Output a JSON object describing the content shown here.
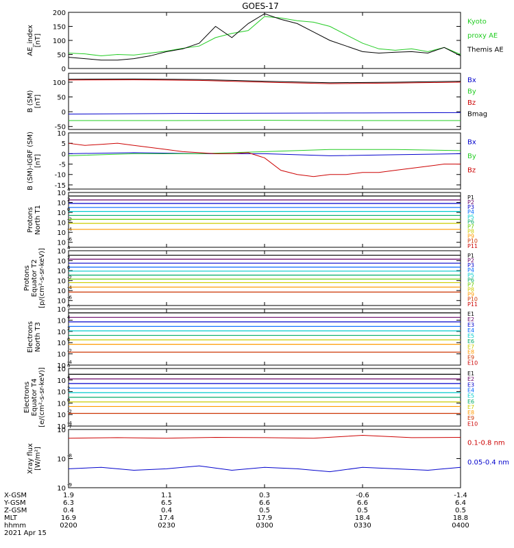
{
  "title": "GOES-17",
  "colors": {
    "black": "#000000",
    "red": "#cc0000",
    "green": "#22cc22",
    "blue": "#0000cc"
  },
  "panels": [
    {
      "id": "ae",
      "ylabel": [
        "AE_index",
        "[nT]"
      ],
      "scale": "linear",
      "ylim": [
        0,
        200
      ],
      "ticks": [
        0,
        50,
        100,
        150,
        200
      ],
      "ticklabels": [
        "0",
        "50",
        "100",
        "150",
        "200"
      ],
      "legend": [
        {
          "text": "Kyoto",
          "color": "#22cc22"
        },
        {
          "text": "proxy AE",
          "color": "#22cc22"
        },
        {
          "text": "Themis AE",
          "color": "#000000"
        }
      ]
    },
    {
      "id": "bsm",
      "ylabel": [
        "B (SM)",
        "[nT]"
      ],
      "scale": "linear",
      "ylim": [
        -60,
        130
      ],
      "ticks": [
        -50,
        0,
        50,
        100
      ],
      "ticklabels": [
        "-50",
        "0",
        "50",
        "100"
      ],
      "legend": [
        {
          "text": "Bx",
          "color": "#0000cc"
        },
        {
          "text": "By",
          "color": "#22cc22"
        },
        {
          "text": "Bz",
          "color": "#cc0000"
        },
        {
          "text": "Bmag",
          "color": "#000000"
        }
      ]
    },
    {
      "id": "bigrf",
      "ylabel": [
        "B (SM)-IGRF (SM)",
        "[nT]"
      ],
      "scale": "linear",
      "ylim": [
        -17,
        10
      ],
      "ticks": [
        -15,
        -10,
        -5,
        0,
        5,
        10
      ],
      "ticklabels": [
        "-15",
        "-10",
        "-5",
        "0",
        "5",
        "10"
      ],
      "legend": [
        {
          "text": "Bx",
          "color": "#0000cc"
        },
        {
          "text": "By",
          "color": "#22cc22"
        },
        {
          "text": "Bz",
          "color": "#cc0000"
        }
      ]
    },
    {
      "id": "prot_t1",
      "ylabel": [
        "Protons",
        "North T1"
      ],
      "scale": "log",
      "ylim": [
        -7,
        4
      ],
      "ticks": [
        -6,
        -4,
        -2,
        0,
        2,
        4
      ],
      "ticklabels": [
        "10",
        "10",
        "10",
        "10",
        "10",
        "10"
      ],
      "tickexps": [
        "-6",
        "-4",
        "-2",
        "0",
        "2",
        "4"
      ],
      "legend": [
        {
          "text": "P1",
          "color": "#000000"
        },
        {
          "text": "P2",
          "color": "#660066"
        },
        {
          "text": "P3",
          "color": "#0000cc"
        },
        {
          "text": "P4",
          "color": "#0066ff"
        },
        {
          "text": "P5",
          "color": "#00cccc"
        },
        {
          "text": "P6",
          "color": "#00aa66"
        },
        {
          "text": "P7",
          "color": "#66cc00"
        },
        {
          "text": "P8",
          "color": "#cccc00"
        },
        {
          "text": "P9",
          "color": "#ff9900"
        },
        {
          "text": "P10",
          "color": "#cc3300"
        },
        {
          "text": "P11",
          "color": "#cc0000"
        }
      ]
    },
    {
      "id": "prot_t2",
      "ylabel": [
        "Protons",
        "Equator T2",
        "[p/(cm²-s-sr-keV)]"
      ],
      "scale": "log",
      "ylim": [
        -7,
        4
      ],
      "ticks": [
        -6,
        -4,
        -2,
        0,
        2,
        4
      ],
      "ticklabels": [
        "10",
        "10",
        "10",
        "10",
        "10",
        "10"
      ],
      "tickexps": [
        "-6",
        "-4",
        "-2",
        "0",
        "2",
        "4"
      ],
      "legend": [
        {
          "text": "P1",
          "color": "#000000"
        },
        {
          "text": "P2",
          "color": "#660066"
        },
        {
          "text": "P3",
          "color": "#0000cc"
        },
        {
          "text": "P4",
          "color": "#0066ff"
        },
        {
          "text": "P5",
          "color": "#00cccc"
        },
        {
          "text": "P6",
          "color": "#00aa66"
        },
        {
          "text": "P7",
          "color": "#66cc00"
        },
        {
          "text": "P8",
          "color": "#cccc00"
        },
        {
          "text": "P9",
          "color": "#ff9900"
        },
        {
          "text": "P10",
          "color": "#cc3300"
        },
        {
          "text": "P11",
          "color": "#cc0000"
        }
      ]
    },
    {
      "id": "elec_t3",
      "ylabel": [
        "Electrons",
        "North T3"
      ],
      "scale": "log",
      "ylim": [
        -4,
        6
      ],
      "ticks": [
        -4,
        -2,
        0,
        2,
        4,
        6
      ],
      "ticklabels": [
        "10",
        "10",
        "10",
        "10",
        "10",
        "10"
      ],
      "tickexps": [
        "-4",
        "-2",
        "0",
        "2",
        "4",
        "6"
      ],
      "legend": [
        {
          "text": "E1",
          "color": "#000000"
        },
        {
          "text": "E2",
          "color": "#660066"
        },
        {
          "text": "E3",
          "color": "#0000cc"
        },
        {
          "text": "E4",
          "color": "#0066ff"
        },
        {
          "text": "E5",
          "color": "#00cccc"
        },
        {
          "text": "E6",
          "color": "#00aa66"
        },
        {
          "text": "E7",
          "color": "#cccc00"
        },
        {
          "text": "E8",
          "color": "#ff9900"
        },
        {
          "text": "E9",
          "color": "#cc3300"
        },
        {
          "text": "E10",
          "color": "#cc0000"
        }
      ]
    },
    {
      "id": "elec_t4",
      "ylabel": [
        "Electrons",
        "Equator T4",
        "[e/(cm²-s-sr-keV)]"
      ],
      "scale": "log",
      "ylim": [
        -4,
        6
      ],
      "ticks": [
        -4,
        -2,
        0,
        2,
        4,
        6
      ],
      "ticklabels": [
        "10",
        "10",
        "10",
        "10",
        "10",
        "10"
      ],
      "tickexps": [
        "-4",
        "-2",
        "0",
        "2",
        "4",
        "6"
      ],
      "legend": [
        {
          "text": "E1",
          "color": "#000000"
        },
        {
          "text": "E2",
          "color": "#660066"
        },
        {
          "text": "E3",
          "color": "#0000cc"
        },
        {
          "text": "E4",
          "color": "#0066ff"
        },
        {
          "text": "E5",
          "color": "#00cccc"
        },
        {
          "text": "E6",
          "color": "#00aa66"
        },
        {
          "text": "E7",
          "color": "#cccc00"
        },
        {
          "text": "E8",
          "color": "#ff9900"
        },
        {
          "text": "E9",
          "color": "#cc3300"
        },
        {
          "text": "E10",
          "color": "#cc0000"
        }
      ]
    },
    {
      "id": "xray",
      "ylabel": [
        "Xray flux",
        "[W/m²]"
      ],
      "scale": "log",
      "ylim": [
        -9,
        -7
      ],
      "ticks": [
        -9,
        -8,
        -7
      ],
      "ticklabels": [
        "10",
        "10",
        "10"
      ],
      "tickexps": [
        "-9",
        "-8",
        "-7"
      ],
      "legend": [
        {
          "text": "0.1-0.8 nm",
          "color": "#cc0000"
        },
        {
          "text": "0.05-0.4 nm",
          "color": "#0000cc"
        }
      ]
    }
  ],
  "axis_table": {
    "rows": [
      {
        "label": "X-GSM",
        "values": [
          "1.9",
          "1.1",
          "0.3",
          "-0.6",
          "-1.4"
        ]
      },
      {
        "label": "Y-GSM",
        "values": [
          "6.3",
          "6.5",
          "6.6",
          "6.6",
          "6.4"
        ]
      },
      {
        "label": "Z-GSM",
        "values": [
          "0.4",
          "0.4",
          "0.5",
          "0.5",
          "0.5"
        ]
      },
      {
        "label": "MLT",
        "values": [
          "16.9",
          "17.4",
          "17.9",
          "18.4",
          "18.8"
        ]
      },
      {
        "label": "hhmm",
        "values": [
          "0200",
          "0230",
          "0300",
          "0330",
          "0400"
        ]
      }
    ],
    "date": "2021 Apr 15"
  },
  "chart_data": {
    "type": "line",
    "x_range": [
      "02:00",
      "04:00"
    ],
    "x_ticks": [
      "0200",
      "0230",
      "0300",
      "0330",
      "0400"
    ],
    "panels": [
      {
        "id": "ae",
        "series": [
          {
            "name": "Kyoto proxy AE",
            "color": "#22cc22",
            "x": [
              0,
              5,
              10,
              15,
              20,
              25,
              30,
              35,
              40,
              45,
              50,
              55,
              60,
              65,
              70,
              75,
              80,
              85,
              90,
              95,
              100,
              105,
              110,
              115,
              120
            ],
            "y": [
              55,
              52,
              45,
              50,
              48,
              55,
              62,
              72,
              80,
              110,
              125,
              135,
              185,
              180,
              170,
              165,
              150,
              120,
              90,
              70,
              65,
              70,
              60,
              75,
              50
            ]
          },
          {
            "name": "Themis AE",
            "color": "#000000",
            "x": [
              0,
              5,
              10,
              15,
              20,
              25,
              30,
              35,
              40,
              45,
              50,
              55,
              60,
              65,
              70,
              75,
              80,
              85,
              90,
              95,
              100,
              105,
              110,
              115,
              120
            ],
            "y": [
              40,
              35,
              30,
              30,
              35,
              45,
              60,
              70,
              90,
              150,
              110,
              160,
              195,
              175,
              160,
              130,
              100,
              80,
              60,
              55,
              58,
              60,
              55,
              75,
              45
            ]
          }
        ]
      },
      {
        "id": "bsm",
        "series": [
          {
            "name": "Bx",
            "color": "#0000cc",
            "x": [
              0,
              30,
              60,
              90,
              120
            ],
            "y": [
              -8,
              -6,
              -5,
              -4,
              -3
            ]
          },
          {
            "name": "By",
            "color": "#22cc22",
            "x": [
              0,
              30,
              60,
              90,
              120
            ],
            "y": [
              -30,
              -30,
              -29,
              -30,
              -30
            ]
          },
          {
            "name": "Bz",
            "color": "#cc0000",
            "x": [
              0,
              20,
              40,
              60,
              80,
              100,
              120
            ],
            "y": [
              107,
              108,
              106,
              100,
              95,
              97,
              100
            ]
          },
          {
            "name": "Bmag",
            "color": "#000000",
            "x": [
              0,
              20,
              40,
              60,
              80,
              100,
              120
            ],
            "y": [
              110,
              111,
              109,
              103,
              98,
              100,
              103
            ]
          }
        ]
      },
      {
        "id": "bigrf",
        "series": [
          {
            "name": "Bx",
            "color": "#0000cc",
            "x": [
              0,
              20,
              40,
              60,
              80,
              100,
              120
            ],
            "y": [
              0,
              0.5,
              0,
              0,
              -1,
              -0.5,
              0
            ]
          },
          {
            "name": "By",
            "color": "#22cc22",
            "x": [
              0,
              20,
              40,
              60,
              80,
              100,
              120
            ],
            "y": [
              -1,
              0,
              0,
              1,
              2,
              2,
              1.5
            ]
          },
          {
            "name": "Bz",
            "color": "#cc0000",
            "x": [
              0,
              5,
              10,
              15,
              20,
              25,
              30,
              35,
              40,
              45,
              50,
              55,
              60,
              65,
              70,
              75,
              80,
              85,
              90,
              95,
              100,
              105,
              110,
              115,
              120
            ],
            "y": [
              5,
              4,
              4.5,
              5,
              4,
              3,
              2,
              1,
              0.5,
              0,
              0,
              0.5,
              -2,
              -8,
              -10,
              -11,
              -10,
              -10,
              -9,
              -9,
              -8,
              -7,
              -6,
              -5,
              -5
            ]
          }
        ]
      },
      {
        "id": "prot_t1",
        "series_levels_log10": [
          3.3,
          2.5,
          1.8,
          1.0,
          0.2,
          -0.6,
          -1.4,
          -2.2,
          -3.4
        ]
      },
      {
        "id": "prot_t2",
        "series_levels_log10": [
          3.1,
          2.3,
          1.5,
          0.7,
          -0.1,
          -0.9,
          -1.7,
          -2.4,
          -3.3,
          -4.3
        ]
      },
      {
        "id": "elec_t3",
        "series_levels_log10": [
          5.3,
          4.5,
          3.7,
          2.9,
          2.1,
          1.3,
          0.5,
          -0.3,
          -1.7
        ]
      },
      {
        "id": "elec_t4",
        "series_levels_log10": [
          5.0,
          4.2,
          3.4,
          2.6,
          1.8,
          1.0,
          0.2,
          -0.6,
          -1.8
        ]
      },
      {
        "id": "xray",
        "series": [
          {
            "name": "0.1-0.8 nm",
            "color": "#cc0000",
            "x": [
              0,
              15,
              30,
              45,
              60,
              75,
              90,
              105,
              120
            ],
            "y_log10": [
              -7.3,
              -7.28,
              -7.3,
              -7.27,
              -7.28,
              -7.3,
              -7.2,
              -7.28,
              -7.27
            ]
          },
          {
            "name": "0.05-0.4 nm",
            "color": "#0000cc",
            "x": [
              0,
              10,
              20,
              30,
              40,
              50,
              60,
              70,
              80,
              90,
              100,
              110,
              120
            ],
            "y_log10": [
              -8.35,
              -8.3,
              -8.4,
              -8.35,
              -8.25,
              -8.4,
              -8.3,
              -8.35,
              -8.45,
              -8.3,
              -8.35,
              -8.4,
              -8.3
            ]
          }
        ]
      }
    ]
  }
}
